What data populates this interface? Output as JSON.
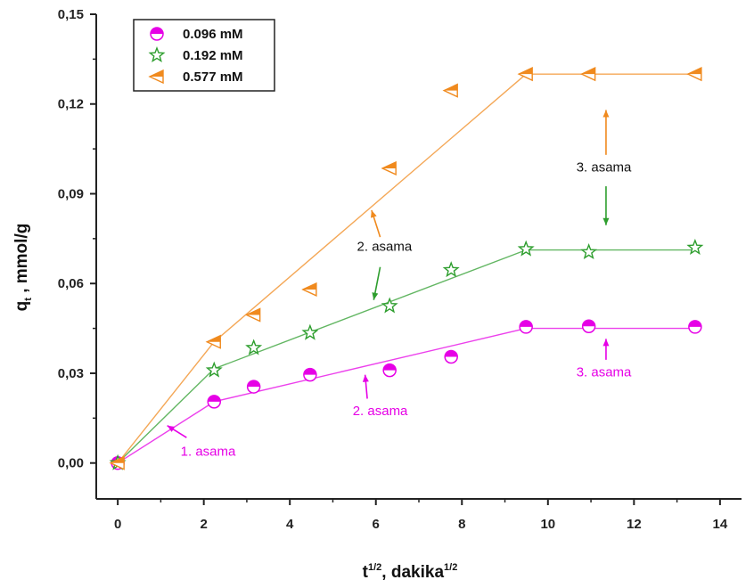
{
  "chart_data": {
    "type": "scatter",
    "xlabel": "t",
    "xlabel_sup1": "1/2",
    "xlabel_mid": ", dakika",
    "xlabel_sup2": "1/2",
    "ylabel": "q",
    "ylabel_sub": "t",
    "ylabel_rest": " , mmol/g",
    "xlim": [
      -0.5,
      14.5
    ],
    "ylim": [
      -0.012,
      0.15
    ],
    "x_ticks": [
      0,
      2,
      4,
      6,
      8,
      10,
      12,
      14
    ],
    "y_ticks": [
      0.0,
      0.03,
      0.06,
      0.09,
      0.12,
      0.15
    ],
    "x_tick_labels": [
      "0",
      "2",
      "4",
      "6",
      "8",
      "10",
      "12",
      "14"
    ],
    "y_tick_labels": [
      "0,00",
      "0,03",
      "0,06",
      "0,09",
      "0,12",
      "0,15"
    ],
    "grid": false,
    "legend_position": "top-left",
    "series": [
      {
        "name": "0.096 mM",
        "color": "#e600e6",
        "marker": "half-circle",
        "x": [
          0,
          2.24,
          3.16,
          4.47,
          6.32,
          7.75,
          9.49,
          10.95,
          13.42
        ],
        "y": [
          0.0,
          0.0205,
          0.0255,
          0.0295,
          0.031,
          0.0355,
          0.0455,
          0.0457,
          0.0455
        ],
        "fit_lines": [
          [
            [
              0,
              0.0
            ],
            [
              2.24,
              0.0205
            ]
          ],
          [
            [
              2.24,
              0.0205
            ],
            [
              9.49,
              0.045
            ]
          ],
          [
            [
              9.49,
              0.045
            ],
            [
              13.42,
              0.045
            ]
          ]
        ]
      },
      {
        "name": "0.192 mM",
        "color": "#2e9e2e",
        "marker": "star",
        "x": [
          0,
          2.24,
          3.16,
          4.47,
          6.32,
          7.75,
          9.49,
          10.95,
          13.42
        ],
        "y": [
          0.0,
          0.031,
          0.0385,
          0.0435,
          0.0525,
          0.0645,
          0.0715,
          0.0705,
          0.072
        ],
        "fit_lines": [
          [
            [
              0,
              0.0
            ],
            [
              2.24,
              0.0315
            ]
          ],
          [
            [
              2.24,
              0.0315
            ],
            [
              9.49,
              0.0712
            ]
          ],
          [
            [
              9.49,
              0.0712
            ],
            [
              13.42,
              0.0712
            ]
          ]
        ]
      },
      {
        "name": "0.577 mM",
        "color": "#f08a1e",
        "marker": "half-triangle",
        "x": [
          0,
          2.24,
          3.16,
          4.47,
          6.32,
          7.75,
          9.49,
          10.95,
          13.42
        ],
        "y": [
          0.0,
          0.0405,
          0.0495,
          0.058,
          0.0985,
          0.1245,
          0.13,
          0.13,
          0.13
        ],
        "fit_lines": [
          [
            [
              0,
              0.0
            ],
            [
              2.24,
              0.0405
            ]
          ],
          [
            [
              2.24,
              0.0405
            ],
            [
              9.49,
              0.13
            ]
          ],
          [
            [
              9.49,
              0.13
            ],
            [
              13.42,
              0.13
            ]
          ]
        ]
      }
    ],
    "annotations": [
      {
        "text": "1. asama",
        "color": "#e600e6",
        "x": 2.1,
        "y": 0.0025,
        "arrow_from": [
          1.6,
          0.0085
        ],
        "arrow_to": [
          1.15,
          0.0125
        ]
      },
      {
        "text": "2. asama",
        "color": "#e600e6",
        "x": 6.1,
        "y": 0.016,
        "arrow_from": [
          5.8,
          0.0215
        ],
        "arrow_to": [
          5.75,
          0.0295
        ]
      },
      {
        "text": "3. asama",
        "color": "#e600e6",
        "x": 11.3,
        "y": 0.029,
        "arrow_from": [
          11.35,
          0.0345
        ],
        "arrow_to": [
          11.35,
          0.0415
        ]
      },
      {
        "text": "2. asama",
        "color": "#111111",
        "x": 6.2,
        "y": 0.071,
        "arrow_from": [
          6.1,
          0.0755
        ],
        "arrow_to": [
          5.9,
          0.0845
        ],
        "arrow_color": "#f08a1e",
        "arrow2_from": [
          6.1,
          0.0655
        ],
        "arrow2_to": [
          5.95,
          0.0545
        ],
        "arrow2_color": "#2e9e2e"
      },
      {
        "text": "3. asama",
        "color": "#111111",
        "x": 11.3,
        "y": 0.0975,
        "arrow_from": [
          11.35,
          0.103
        ],
        "arrow_to": [
          11.35,
          0.118
        ],
        "arrow_color": "#f08a1e",
        "arrow2_from": [
          11.35,
          0.0925
        ],
        "arrow2_to": [
          11.35,
          0.0795
        ],
        "arrow2_color": "#2e9e2e"
      }
    ]
  }
}
